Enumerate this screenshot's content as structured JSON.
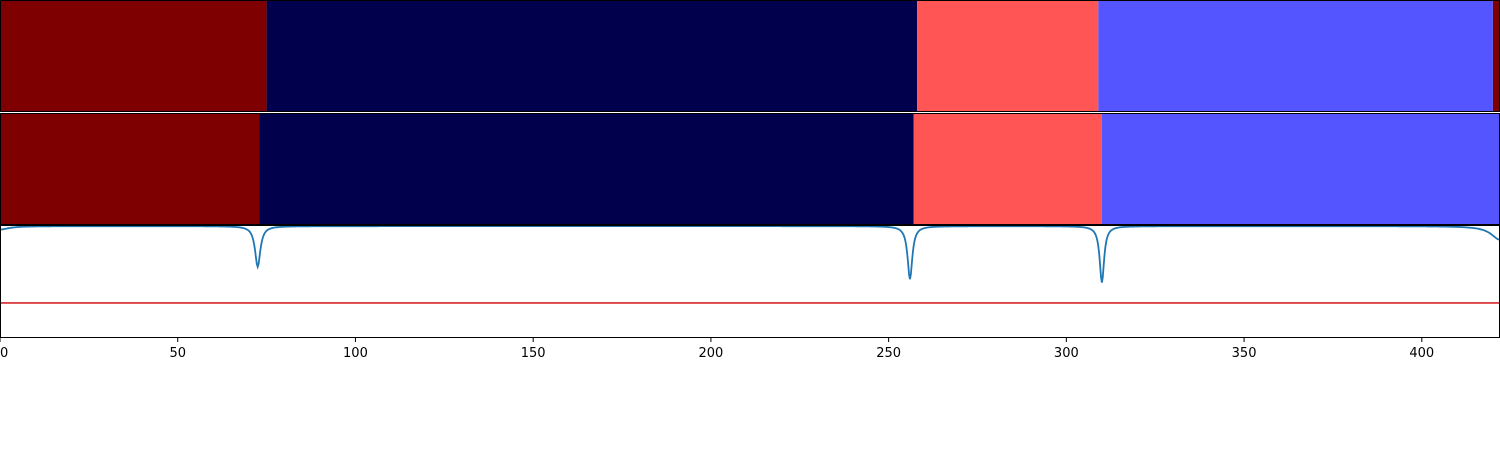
{
  "chart_data": [
    {
      "type": "heatmap",
      "panel": "top-band",
      "xlim": [
        0,
        422
      ],
      "segments": [
        {
          "start": 0,
          "end": 75,
          "color": "#7f0000"
        },
        {
          "start": 75,
          "end": 258,
          "color": "#00004c"
        },
        {
          "start": 258,
          "end": 309,
          "color": "#ff5555"
        },
        {
          "start": 309,
          "end": 420,
          "color": "#5555ff"
        },
        {
          "start": 420,
          "end": 422,
          "color": "#7f0000"
        }
      ]
    },
    {
      "type": "heatmap",
      "panel": "middle-band",
      "xlim": [
        0,
        422
      ],
      "segments": [
        {
          "start": 0,
          "end": 73,
          "color": "#7f0000"
        },
        {
          "start": 73,
          "end": 257,
          "color": "#00004c"
        },
        {
          "start": 257,
          "end": 310,
          "color": "#ff5555"
        },
        {
          "start": 310,
          "end": 422,
          "color": "#5555ff"
        }
      ]
    },
    {
      "type": "line",
      "panel": "bottom-line",
      "xlim": [
        0,
        422
      ],
      "ylim": [
        0,
        1
      ],
      "threshold": 0.31,
      "threshold_color": "#d62728",
      "line_color": "#1f77b4",
      "base": 0.99,
      "dips": [
        {
          "x": 0,
          "depth": 0.03,
          "width": 3
        },
        {
          "x": 72.5,
          "depth": 0.36,
          "width": 0.9
        },
        {
          "x": 256,
          "depth": 0.47,
          "width": 0.8
        },
        {
          "x": 310,
          "depth": 0.5,
          "width": 0.75
        },
        {
          "x": 422,
          "depth": 0.12,
          "width": 3
        }
      ],
      "x_ticks": [
        0,
        50,
        100,
        150,
        200,
        250,
        300,
        350,
        400
      ]
    }
  ]
}
